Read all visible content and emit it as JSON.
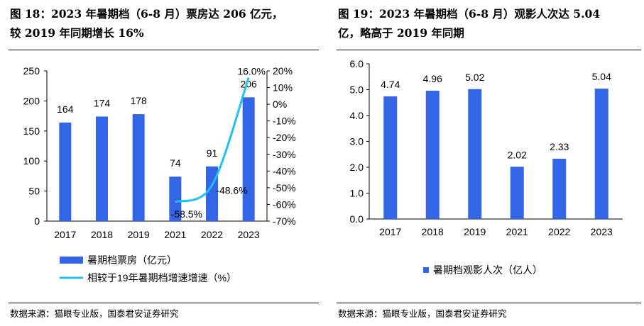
{
  "charts": {
    "left": {
      "title_line1": "图 18：2023 年暑期档（6-8 月）票房达 206 亿元，",
      "title_line2": "较 2019 年同期增长 16%",
      "source": "数据来源：猫眼专业版，国泰君安证券研究"
    },
    "right": {
      "title_line1": "图 19：2023 年暑期档（6-8 月）观影人次达 5.04",
      "title_line2": "亿，略高于 2019 年同期",
      "source": "数据来源：猫眼专业版，国泰君安证券研究"
    }
  },
  "colors": {
    "bar": "#3366E6",
    "line": "#20C0F0"
  },
  "chart_data": [
    {
      "type": "bar",
      "title": "图 18：2023 年暑期档（6-8 月）票房达 206 亿元，较 2019 年同期增长 16%",
      "categories": [
        "2017",
        "2018",
        "2019",
        "2021",
        "2022",
        "2023"
      ],
      "series": [
        {
          "name": "暑期档票房（亿元）",
          "type": "bar",
          "axis": "left",
          "values": [
            164,
            174,
            178,
            74,
            91,
            206
          ],
          "labels": [
            "164",
            "174",
            "178",
            "74",
            "91",
            "206"
          ]
        },
        {
          "name": "相较于19年暑期档增速增速（%）",
          "type": "line",
          "axis": "right",
          "x": [
            "2021",
            "2022",
            "2023"
          ],
          "values": [
            -58.5,
            -48.6,
            16.0
          ],
          "labels": [
            "-58.5%",
            "-48.6%",
            "16.0%"
          ]
        }
      ],
      "ylim": [
        0,
        250
      ],
      "yticks": [
        "0",
        "50",
        "100",
        "150",
        "200",
        "250"
      ],
      "y2lim": [
        -70,
        20
      ],
      "y2ticks": [
        "20%",
        "10%",
        "0%",
        "-10%",
        "-20%",
        "-30%",
        "-40%",
        "-50%",
        "-60%",
        "-70%"
      ],
      "legend_position": "bottom-left",
      "grid": false
    },
    {
      "type": "bar",
      "title": "图 19：2023 年暑期档（6-8 月）观影人次达 5.04 亿，略高于 2019 年同期",
      "categories": [
        "2017",
        "2018",
        "2019",
        "2021",
        "2022",
        "2023"
      ],
      "series": [
        {
          "name": "暑期档观影人次（亿人）",
          "values": [
            4.74,
            4.96,
            5.02,
            2.02,
            2.33,
            5.04
          ],
          "labels": [
            "4.74",
            "4.96",
            "5.02",
            "2.02",
            "2.33",
            "5.04"
          ]
        }
      ],
      "ylim": [
        0,
        6
      ],
      "yticks": [
        "0.0",
        "1.0",
        "2.0",
        "3.0",
        "4.0",
        "5.0",
        "6.0"
      ],
      "legend_position": "bottom-center",
      "grid": false
    }
  ]
}
